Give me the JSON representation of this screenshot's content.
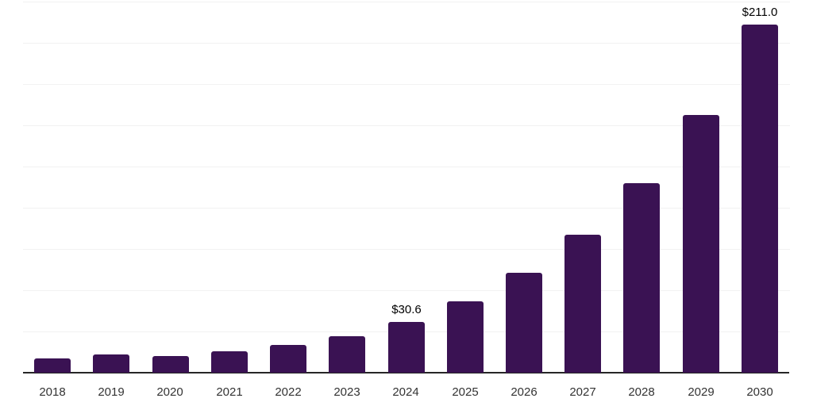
{
  "chart_data": {
    "type": "bar",
    "title": "",
    "xlabel": "",
    "ylabel": "",
    "categories": [
      "2018",
      "2019",
      "2020",
      "2021",
      "2022",
      "2023",
      "2024",
      "2025",
      "2026",
      "2027",
      "2028",
      "2029",
      "2030"
    ],
    "values": [
      8.8,
      10.9,
      10.0,
      12.8,
      16.8,
      22.0,
      30.6,
      43.1,
      60.5,
      83.9,
      114.8,
      156.5,
      211.0
    ],
    "bar_labels": [
      "",
      "",
      "",
      "",
      "",
      "",
      "$30.6",
      "",
      "",
      "",
      "",
      "",
      "$211.0"
    ],
    "ylim": [
      0,
      226
    ],
    "grid": true,
    "grid_step": 25,
    "legend": "none",
    "colors": {
      "bar": "#3a1253",
      "axis_line": "#262626",
      "gridline": "#f2f2f2",
      "tick_label": "#333333",
      "value_label": "#000000",
      "background": "#ffffff"
    }
  }
}
